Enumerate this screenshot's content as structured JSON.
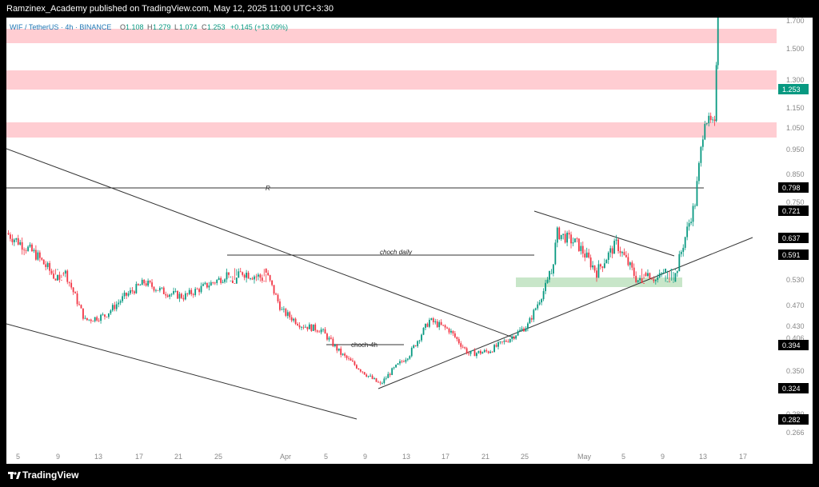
{
  "header": {
    "publisher_line": "Ramzinex_Academy published on TradingView.com, May 12, 2025 11:00 UTC+3:30"
  },
  "footer": {
    "brand": "TradingView"
  },
  "chart_data": {
    "type": "candlestick",
    "legend": {
      "symbol": "WIF / TetherUS · 4h · BINANCE",
      "o_label": "O",
      "o": "1.108",
      "h_label": "H",
      "h": "1.279",
      "l_label": "L",
      "l": "1.074",
      "c_label": "C",
      "c": "1.253",
      "change": "+0.145 (+13.09%)"
    },
    "y_ticks": [
      "1.700",
      "1.500",
      "1.300",
      "1.150",
      "1.050",
      "0.950",
      "0.850",
      "0.750",
      "0.530",
      "0.470",
      "0.430",
      "0.406",
      "0.350",
      "0.280",
      "0.266"
    ],
    "x_ticks": [
      "5",
      "9",
      "13",
      "17",
      "21",
      "25",
      "Apr",
      "5",
      "9",
      "13",
      "17",
      "21",
      "25",
      "May",
      "5",
      "9",
      "13",
      "17"
    ],
    "price_labels": [
      {
        "value": "1.253",
        "color": "#089981"
      },
      {
        "value": "0.798",
        "color": "#000000"
      },
      {
        "value": "0.721",
        "color": "#000000"
      },
      {
        "value": "0.637",
        "color": "#000000"
      },
      {
        "value": "0.591",
        "color": "#000000"
      },
      {
        "value": "0.394",
        "color": "#000000"
      },
      {
        "value": "0.324",
        "color": "#000000"
      },
      {
        "value": "0.282",
        "color": "#000000"
      }
    ],
    "resistance_zones": [
      [
        1.54,
        1.64
      ],
      [
        1.2,
        1.34
      ],
      [
        1.0,
        1.08
      ]
    ],
    "support_zone": [
      0.512,
      0.538
    ],
    "annotations": [
      "R",
      "choch daily",
      "choch-4h"
    ],
    "colors": {
      "up": "#089981",
      "down": "#f23645",
      "zone_red": "#ffcdd2",
      "zone_green": "#c8e6c9"
    },
    "price_path": [
      {
        "date": "2025-03-01",
        "close": 0.64
      },
      {
        "date": "2025-03-04",
        "close": 0.6
      },
      {
        "date": "2025-03-07",
        "close": 0.54
      },
      {
        "date": "2025-03-09",
        "close": 0.44
      },
      {
        "date": "2025-03-11",
        "close": 0.45
      },
      {
        "date": "2025-03-13",
        "close": 0.49
      },
      {
        "date": "2025-03-15",
        "close": 0.52
      },
      {
        "date": "2025-03-17",
        "close": 0.5
      },
      {
        "date": "2025-03-19",
        "close": 0.49
      },
      {
        "date": "2025-03-21",
        "close": 0.51
      },
      {
        "date": "2025-03-23",
        "close": 0.53
      },
      {
        "date": "2025-03-25",
        "close": 0.57
      },
      {
        "date": "2025-03-27",
        "close": 0.56
      },
      {
        "date": "2025-03-29",
        "close": 0.46
      },
      {
        "date": "2025-03-31",
        "close": 0.43
      },
      {
        "date": "2025-04-02",
        "close": 0.42
      },
      {
        "date": "2025-04-04",
        "close": 0.37
      },
      {
        "date": "2025-04-07",
        "close": 0.32
      },
      {
        "date": "2025-04-08",
        "close": 0.305
      },
      {
        "date": "2025-04-09",
        "close": 0.33
      },
      {
        "date": "2025-04-11",
        "close": 0.37
      },
      {
        "date": "2025-04-13",
        "close": 0.44
      },
      {
        "date": "2025-04-15",
        "close": 0.42
      },
      {
        "date": "2025-04-17",
        "close": 0.37
      },
      {
        "date": "2025-04-19",
        "close": 0.375
      },
      {
        "date": "2025-04-21",
        "close": 0.4
      },
      {
        "date": "2025-04-23",
        "close": 0.43
      },
      {
        "date": "2025-04-25",
        "close": 0.52
      },
      {
        "date": "2025-04-26",
        "close": 0.64
      },
      {
        "date": "2025-04-28",
        "close": 0.62
      },
      {
        "date": "2025-04-30",
        "close": 0.57
      },
      {
        "date": "2025-05-02",
        "close": 0.62
      },
      {
        "date": "2025-05-04",
        "close": 0.56
      },
      {
        "date": "2025-05-06",
        "close": 0.525
      },
      {
        "date": "2025-05-08",
        "close": 0.565
      },
      {
        "date": "2025-05-10",
        "close": 0.7
      },
      {
        "date": "2025-05-11",
        "close": 0.9
      },
      {
        "date": "2025-05-12",
        "close": 0.88
      },
      {
        "date": "2025-05-12T08:00",
        "close": 1.253
      }
    ]
  }
}
